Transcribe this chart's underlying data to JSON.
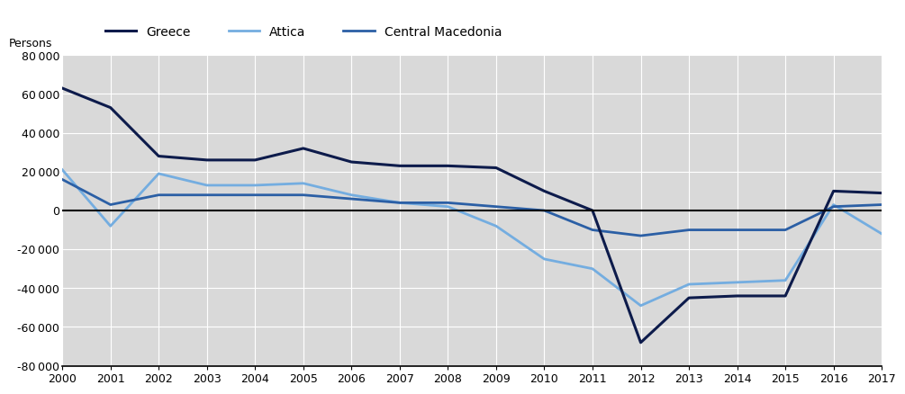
{
  "years": [
    2000,
    2001,
    2002,
    2003,
    2004,
    2005,
    2006,
    2007,
    2008,
    2009,
    2010,
    2011,
    2012,
    2013,
    2014,
    2015,
    2016,
    2017
  ],
  "greece": [
    63000,
    53000,
    28000,
    26000,
    26000,
    32000,
    25000,
    23000,
    23000,
    22000,
    10000,
    0,
    -68000,
    -45000,
    -44000,
    -44000,
    10000,
    9000
  ],
  "attica": [
    21000,
    -8000,
    19000,
    13000,
    13000,
    14000,
    8000,
    4000,
    2000,
    -8000,
    -25000,
    -30000,
    -49000,
    -38000,
    -37000,
    -36000,
    3000,
    -12000
  ],
  "central_macedonia": [
    16000,
    3000,
    8000,
    8000,
    8000,
    8000,
    6000,
    4000,
    4000,
    2000,
    0,
    -10000,
    -13000,
    -10000,
    -10000,
    -10000,
    2000,
    3000
  ],
  "greece_color": "#0d1b4b",
  "attica_color": "#74ade0",
  "central_macedonia_color": "#2b5fa5",
  "plot_bg_color": "#d9d9d9",
  "legend_bg_color": "#d9d9d9",
  "fig_bg_color": "#ffffff",
  "ylabel": "Persons",
  "ylim": [
    -80000,
    80000
  ],
  "yticks": [
    -80000,
    -60000,
    -40000,
    -20000,
    0,
    20000,
    40000,
    60000,
    80000
  ],
  "legend_labels": [
    "Greece",
    "Attica",
    "Central Macedonia"
  ],
  "linewidth_greece": 2.2,
  "linewidth_attica": 2.0,
  "linewidth_central": 2.0
}
